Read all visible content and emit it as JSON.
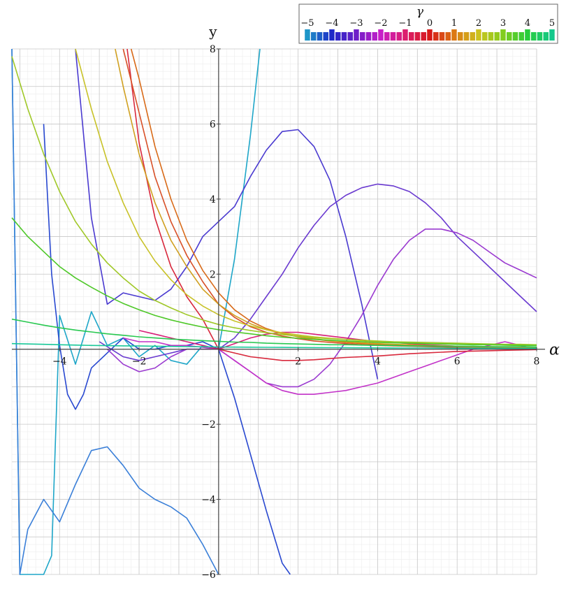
{
  "chart_data": {
    "type": "line",
    "title": "",
    "xlabel": "α",
    "ylabel": "y",
    "xlim": [
      -5.2,
      8
    ],
    "ylim": [
      -6,
      8
    ],
    "grid": true,
    "x_ticks": [
      "−4",
      "−2",
      "2",
      "4",
      "6",
      "8"
    ],
    "x_tick_values": [
      -4,
      -2,
      2,
      4,
      6,
      8
    ],
    "y_ticks": [
      "−6",
      "−4",
      "−2",
      "2",
      "4",
      "6",
      "8"
    ],
    "y_tick_values": [
      -6,
      -4,
      -2,
      2,
      4,
      6,
      8
    ],
    "legend": {
      "title": "γ",
      "placement": "top-right",
      "labels": [
        "−5",
        "−4",
        "−3",
        "−2",
        "−1",
        "0",
        "1",
        "2",
        "3",
        "4",
        "5"
      ],
      "label_values": [
        -5,
        -4,
        -3,
        -2,
        -1,
        0,
        1,
        2,
        3,
        4,
        5
      ],
      "gamma_range": [
        -5,
        5
      ],
      "gamma_step": 0.25
    },
    "series": [
      {
        "gamma": -5,
        "color": "#1ea6c8",
        "x": [
          -5.2,
          -5.0,
          -4.8,
          -4.6,
          -4.4,
          -4.2,
          -4.0,
          -3.6,
          -3.2,
          -2.8,
          -2.4,
          -2.0,
          -1.6,
          -1.2,
          -0.8,
          -0.4,
          0.0,
          0.4,
          0.8,
          1.04
        ],
        "y": [
          8.0,
          -6.0,
          -6.0,
          -6.0,
          -6.0,
          -5.5,
          0.9,
          -0.4,
          1.0,
          0.1,
          0.3,
          -0.2,
          0.1,
          -0.3,
          -0.4,
          0.1,
          0.0,
          2.4,
          5.7,
          8.0
        ]
      },
      {
        "gamma": -4.5,
        "color": "#3a7fd8",
        "x": [
          -5.2,
          -5.0,
          -4.8,
          -4.4,
          -4.0,
          -3.6,
          -3.2,
          -2.8,
          -2.4,
          -2.0,
          -1.6,
          -1.2,
          -0.8,
          -0.4,
          0.0
        ],
        "y": [
          8.0,
          -6.0,
          -4.8,
          -4.0,
          -4.6,
          -3.6,
          -2.7,
          -2.6,
          -3.1,
          -3.7,
          -4.0,
          -4.2,
          -4.5,
          -5.2,
          -6.0
        ]
      },
      {
        "gamma": -4,
        "color": "#2848d0",
        "x": [
          -4.4,
          -4.2,
          -4.0,
          -3.8,
          -3.6,
          -3.4,
          -3.2,
          -2.8,
          -2.4,
          -2.0,
          -1.6,
          -1.2,
          -0.8,
          -0.4,
          0.0,
          0.4,
          0.8,
          1.2,
          1.6,
          1.8
        ],
        "y": [
          6.0,
          2.0,
          0.1,
          -1.2,
          -1.6,
          -1.2,
          -0.5,
          -0.1,
          0.3,
          0.0,
          0.0,
          0.1,
          0.1,
          0.2,
          0.0,
          -1.3,
          -2.8,
          -4.3,
          -5.7,
          -6.0
        ]
      },
      {
        "gamma": -3.5,
        "color": "#4a3ad0",
        "x": [
          -3.6,
          -3.2,
          -2.8,
          -2.4,
          -2.0,
          -1.6,
          -1.2,
          -0.8,
          -0.4,
          0.0,
          0.4,
          0.8,
          1.2,
          1.6,
          2.0,
          2.4,
          2.8,
          3.2,
          3.6,
          4.0
        ],
        "y": [
          8.0,
          3.5,
          1.2,
          1.5,
          1.4,
          1.3,
          1.6,
          2.2,
          3.0,
          3.4,
          3.8,
          4.6,
          5.3,
          5.8,
          5.85,
          5.4,
          4.5,
          3.0,
          1.2,
          -0.8
        ]
      },
      {
        "gamma": -3.0,
        "color": "#6a3ad0",
        "x": [
          -3.0,
          -2.4,
          -2.0,
          -1.6,
          -1.2,
          -0.8,
          -0.4,
          0.0,
          0.4,
          0.8,
          1.2,
          1.6,
          2.0,
          2.4,
          2.8,
          3.2,
          3.6,
          4.0,
          4.4,
          4.8,
          5.2,
          5.6,
          6.0,
          6.4,
          6.8,
          7.2,
          7.6,
          8.0
        ],
        "y": [
          0.2,
          -0.2,
          -0.3,
          -0.2,
          -0.1,
          0.0,
          0.0,
          0.0,
          0.3,
          0.8,
          1.4,
          2.0,
          2.7,
          3.3,
          3.8,
          4.1,
          4.3,
          4.4,
          4.35,
          4.2,
          3.9,
          3.5,
          3.0,
          2.6,
          2.2,
          1.8,
          1.4,
          1.0
        ]
      },
      {
        "gamma": -2.5,
        "color": "#9a3ad0",
        "x": [
          -2.8,
          -2.4,
          -2.0,
          -1.6,
          -1.2,
          -0.8,
          -0.4,
          0.0,
          0.4,
          0.8,
          1.2,
          1.6,
          2.0,
          2.4,
          2.8,
          3.2,
          3.6,
          4.0,
          4.4,
          4.8,
          5.2,
          5.6,
          6.0,
          6.4,
          6.8,
          7.2,
          7.6,
          8.0
        ],
        "y": [
          0.0,
          -0.4,
          -0.6,
          -0.5,
          -0.2,
          0.0,
          0.0,
          0.0,
          -0.3,
          -0.6,
          -0.9,
          -1.0,
          -1.0,
          -0.8,
          -0.4,
          0.2,
          0.9,
          1.7,
          2.4,
          2.9,
          3.2,
          3.2,
          3.1,
          2.9,
          2.6,
          2.3,
          2.1,
          1.9
        ]
      },
      {
        "gamma": -2.0,
        "color": "#c232c8",
        "x": [
          -2.4,
          -2.0,
          -1.6,
          -1.2,
          -0.8,
          -0.4,
          0.0,
          0.4,
          0.8,
          1.2,
          1.6,
          2.0,
          2.4,
          2.8,
          3.2,
          3.6,
          4.0,
          4.4,
          4.8,
          5.2,
          5.6,
          6.0,
          6.4,
          6.8,
          7.2,
          7.6,
          8.0
        ],
        "y": [
          0.3,
          0.2,
          0.2,
          0.1,
          0.1,
          0.05,
          0.0,
          -0.3,
          -0.6,
          -0.9,
          -1.1,
          -1.2,
          -1.2,
          -1.15,
          -1.1,
          -1.0,
          -0.9,
          -0.75,
          -0.6,
          -0.45,
          -0.3,
          -0.15,
          0.0,
          0.1,
          0.2,
          0.1,
          0.0
        ]
      },
      {
        "gamma": -1.5,
        "color": "#d81e78",
        "x": [
          -2.0,
          -1.6,
          -1.2,
          -0.8,
          -0.4,
          0.0,
          0.4,
          0.8,
          1.2,
          1.6,
          2.0,
          2.4,
          2.8,
          3.2,
          3.6,
          4.0,
          4.4,
          4.8,
          5.2,
          5.6,
          6.0,
          6.4,
          6.8,
          7.2,
          7.6,
          8.0
        ],
        "y": [
          0.5,
          0.4,
          0.3,
          0.2,
          0.1,
          0.0,
          0.15,
          0.3,
          0.4,
          0.45,
          0.45,
          0.4,
          0.35,
          0.3,
          0.25,
          0.2,
          0.18,
          0.15,
          0.12,
          0.1,
          0.08,
          0.06,
          0.05,
          0.04,
          0.03,
          0.02
        ]
      },
      {
        "gamma": -1.0,
        "color": "#d8283c",
        "x": [
          -2.3,
          -2.0,
          -1.6,
          -1.2,
          -0.8,
          -0.4,
          0.0,
          0.4,
          0.8,
          1.2,
          1.6,
          2.0,
          2.4,
          2.8,
          3.2,
          3.6,
          4.0,
          4.4,
          4.8,
          5.2,
          5.6,
          6.0,
          6.4,
          6.8,
          7.2,
          7.6,
          8.0
        ],
        "y": [
          8.0,
          5.5,
          3.5,
          2.2,
          1.4,
          0.8,
          0.0,
          -0.1,
          -0.2,
          -0.25,
          -0.3,
          -0.3,
          -0.28,
          -0.25,
          -0.22,
          -0.2,
          -0.18,
          -0.15,
          -0.12,
          -0.1,
          -0.08,
          -0.06,
          -0.05,
          -0.04,
          -0.03,
          -0.02,
          -0.01
        ]
      },
      {
        "gamma": -0.5,
        "color": "#d85028",
        "x": [
          -2.4,
          -2.0,
          -1.6,
          -1.2,
          -0.8,
          -0.4,
          0.0,
          0.4,
          0.8,
          1.2,
          1.6,
          2.0,
          2.4,
          2.8,
          3.2,
          3.6,
          4.0,
          4.4,
          4.8,
          5.2,
          5.6,
          6.0,
          6.4,
          6.8,
          7.2,
          7.6,
          8.0
        ],
        "y": [
          8.0,
          6.3,
          4.6,
          3.4,
          2.5,
          1.8,
          1.2,
          0.85,
          0.6,
          0.45,
          0.35,
          0.28,
          0.22,
          0.18,
          0.15,
          0.12,
          0.1,
          0.09,
          0.08,
          0.07,
          0.06,
          0.05,
          0.05,
          0.04,
          0.04,
          0.03,
          0.03
        ]
      },
      {
        "gamma": 0.0,
        "color": "#d86a18",
        "x": [
          -2.2,
          -2.0,
          -1.6,
          -1.2,
          -0.8,
          -0.4,
          0.0,
          0.4,
          0.8,
          1.2,
          1.6,
          2.0,
          2.4,
          2.8,
          3.2,
          3.6,
          4.0,
          4.4,
          4.8,
          5.2,
          5.6,
          6.0,
          6.4,
          6.8,
          7.2,
          7.6,
          8.0
        ],
        "y": [
          8.0,
          7.2,
          5.4,
          4.0,
          2.9,
          2.1,
          1.5,
          1.05,
          0.75,
          0.55,
          0.42,
          0.33,
          0.27,
          0.22,
          0.18,
          0.15,
          0.13,
          0.11,
          0.1,
          0.09,
          0.08,
          0.07,
          0.06,
          0.05,
          0.05,
          0.04,
          0.04
        ]
      },
      {
        "gamma": 0.5,
        "color": "#d0a020",
        "x": [
          -2.6,
          -2.4,
          -2.0,
          -1.6,
          -1.2,
          -0.8,
          -0.4,
          0.0,
          0.4,
          0.8,
          1.2,
          1.6,
          2.0,
          2.4,
          2.8,
          3.2,
          3.6,
          4.0,
          4.4,
          4.8,
          5.2,
          5.6,
          6.0,
          6.4,
          6.8,
          7.2,
          7.6,
          8.0
        ],
        "y": [
          8.0,
          7.0,
          5.2,
          3.9,
          2.9,
          2.2,
          1.6,
          1.2,
          0.9,
          0.68,
          0.52,
          0.42,
          0.34,
          0.28,
          0.23,
          0.2,
          0.17,
          0.15,
          0.13,
          0.12,
          0.1,
          0.09,
          0.08,
          0.07,
          0.07,
          0.06,
          0.06,
          0.05
        ]
      },
      {
        "gamma": 1.0,
        "color": "#c8c228",
        "x": [
          -3.6,
          -3.2,
          -2.8,
          -2.4,
          -2.0,
          -1.6,
          -1.2,
          -0.8,
          -0.4,
          0.0,
          0.4,
          0.8,
          1.2,
          1.6,
          2.0,
          2.4,
          2.8,
          3.2,
          3.6,
          4.0,
          4.4,
          4.8,
          5.2,
          5.6,
          6.0,
          6.4,
          6.8,
          7.2,
          7.6,
          8.0
        ],
        "y": [
          8.0,
          6.4,
          5.0,
          3.9,
          3.0,
          2.35,
          1.85,
          1.45,
          1.15,
          0.92,
          0.75,
          0.62,
          0.52,
          0.44,
          0.38,
          0.33,
          0.29,
          0.26,
          0.23,
          0.21,
          0.19,
          0.17,
          0.16,
          0.15,
          0.14,
          0.13,
          0.12,
          0.11,
          0.1,
          0.1
        ]
      },
      {
        "gamma": 1.5,
        "color": "#a0c828",
        "x": [
          -5.2,
          -4.8,
          -4.4,
          -4.0,
          -3.6,
          -3.2,
          -2.8,
          -2.4,
          -2.0,
          -1.6,
          -1.2,
          -0.8,
          -0.4,
          0.0,
          0.4,
          0.8,
          1.2,
          1.6,
          2.0,
          2.4,
          2.8,
          3.2,
          3.6,
          4.0,
          4.4,
          4.8,
          5.2,
          5.6,
          6.0,
          6.4,
          6.8,
          7.2,
          7.6,
          8.0
        ],
        "y": [
          7.8,
          6.4,
          5.2,
          4.2,
          3.4,
          2.8,
          2.3,
          1.9,
          1.55,
          1.3,
          1.1,
          0.92,
          0.78,
          0.66,
          0.57,
          0.5,
          0.44,
          0.39,
          0.35,
          0.31,
          0.28,
          0.26,
          0.24,
          0.22,
          0.2,
          0.19,
          0.18,
          0.17,
          0.16,
          0.15,
          0.14,
          0.13,
          0.13,
          0.12
        ]
      },
      {
        "gamma": 2.0,
        "color": "#4ec828",
        "x": [
          -5.2,
          -4.8,
          -4.4,
          -4.0,
          -3.6,
          -3.2,
          -2.8,
          -2.4,
          -2.0,
          -1.6,
          -1.2,
          -0.8,
          -0.4,
          0.0,
          0.4,
          0.8,
          1.2,
          1.6,
          2.0,
          2.4,
          2.8,
          3.2,
          3.6,
          4.0,
          4.4,
          4.8,
          5.2,
          5.6,
          6.0,
          6.4,
          6.8,
          7.2,
          7.6,
          8.0
        ],
        "y": [
          3.5,
          3.0,
          2.6,
          2.2,
          1.9,
          1.65,
          1.42,
          1.22,
          1.05,
          0.9,
          0.78,
          0.68,
          0.59,
          0.52,
          0.46,
          0.41,
          0.36,
          0.32,
          0.29,
          0.26,
          0.24,
          0.22,
          0.2,
          0.18,
          0.17,
          0.16,
          0.15,
          0.14,
          0.13,
          0.12,
          0.12,
          0.11,
          0.1,
          0.1
        ]
      },
      {
        "gamma": 3.0,
        "color": "#28c850",
        "x": [
          -5.2,
          -4.8,
          -4.4,
          -4.0,
          -3.6,
          -3.2,
          -2.8,
          -2.4,
          -2.0,
          -1.6,
          -1.2,
          -0.8,
          -0.4,
          0.0,
          0.4,
          0.8,
          1.2,
          1.6,
          2.0,
          2.4,
          2.8,
          3.2,
          3.6,
          4.0,
          4.4,
          4.8,
          5.2,
          5.6,
          6.0,
          6.4,
          6.8,
          7.2,
          7.6,
          8.0
        ],
        "y": [
          0.8,
          0.72,
          0.64,
          0.57,
          0.51,
          0.46,
          0.41,
          0.37,
          0.33,
          0.3,
          0.27,
          0.25,
          0.23,
          0.21,
          0.19,
          0.18,
          0.16,
          0.15,
          0.14,
          0.13,
          0.12,
          0.12,
          0.11,
          0.1,
          0.1,
          0.09,
          0.09,
          0.08,
          0.08,
          0.08,
          0.07,
          0.07,
          0.07,
          0.06
        ]
      },
      {
        "gamma": 4.5,
        "color": "#18c898",
        "x": [
          -5.2,
          -4.8,
          -4.4,
          -4.0,
          -3.6,
          -3.2,
          -2.8,
          -2.4,
          -2.0,
          -1.6,
          -1.2,
          -0.8,
          -0.4,
          0.0,
          0.4,
          0.8,
          1.2,
          1.6,
          2.0,
          2.4,
          2.8,
          3.2,
          3.6,
          4.0,
          4.4,
          4.8,
          5.2,
          5.6,
          6.0,
          6.4,
          6.8,
          7.2,
          7.6,
          8.0
        ],
        "y": [
          0.15,
          0.14,
          0.13,
          0.12,
          0.11,
          0.1,
          0.095,
          0.09,
          0.085,
          0.08,
          0.075,
          0.07,
          0.065,
          0.06,
          0.057,
          0.054,
          0.051,
          0.048,
          0.045,
          0.043,
          0.041,
          0.039,
          0.037,
          0.035,
          0.034,
          0.032,
          0.031,
          0.03,
          0.029,
          0.028,
          0.027,
          0.026,
          0.025,
          0.024
        ]
      }
    ]
  }
}
